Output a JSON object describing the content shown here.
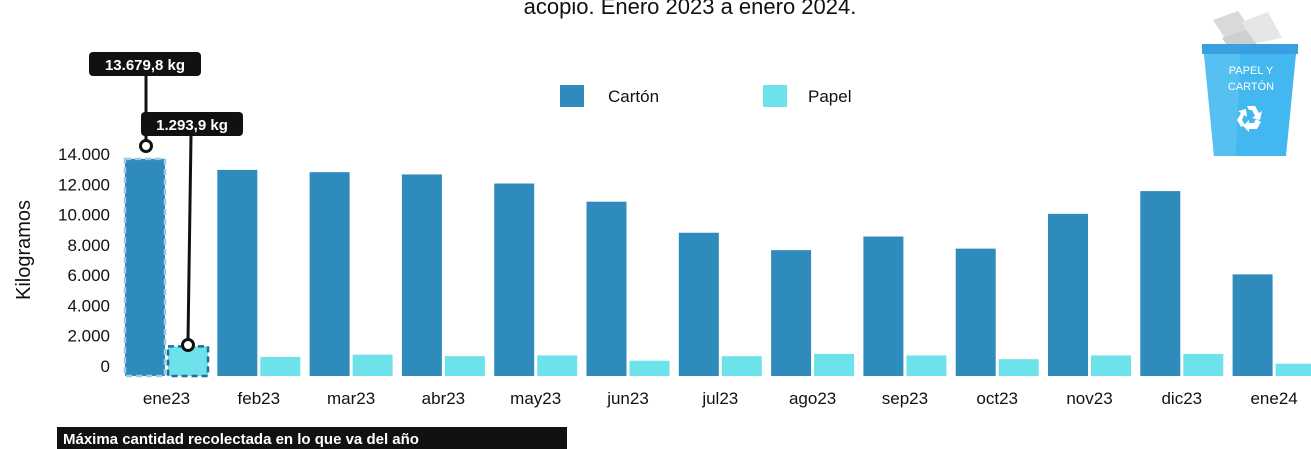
{
  "chart_data": {
    "type": "bar",
    "title": "acopio. Enero 2023 a enero 2024.",
    "ylabel": "Kilogramos",
    "xlabel": "",
    "ylim": [
      0,
      14000
    ],
    "yticks": [
      "0",
      "2.000",
      "4.000",
      "6.000",
      "8.000",
      "10.000",
      "12.000",
      "14.000"
    ],
    "categories": [
      "ene23",
      "feb23",
      "mar23",
      "abr23",
      "may23",
      "jun23",
      "jul23",
      "ago23",
      "sep23",
      "oct23",
      "nov23",
      "dic23",
      "ene24"
    ],
    "series": [
      {
        "name": "Cartón",
        "color": "#2f8bbb",
        "values": [
          13679.8,
          12950,
          12800,
          12650,
          12050,
          10850,
          8800,
          7650,
          8550,
          7750,
          10050,
          11550,
          6050
        ]
      },
      {
        "name": "Papel",
        "color": "#6ee2ea",
        "values": [
          1293.9,
          600,
          750,
          650,
          700,
          350,
          650,
          800,
          700,
          450,
          700,
          800,
          150
        ]
      }
    ],
    "legend_position": "top-center",
    "grid": false,
    "annotations": {
      "carton_max": "13.679,8 kg",
      "papel_max": "1.293,9 kg",
      "footer": "Máxima cantidad recolectada en lo que va del año"
    }
  },
  "icon": {
    "name": "recycle-bin-icon",
    "label_line1": "PAPEL Y",
    "label_line2": "CARTÓN"
  }
}
